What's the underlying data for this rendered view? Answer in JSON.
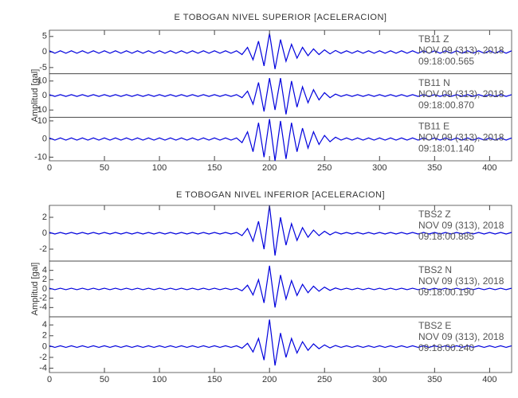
{
  "chart_data": [
    {
      "type": "seismogram",
      "title": "E TOBOGAN NIVEL SUPERIOR [ACELERACION]",
      "ylabel": "Amplitud [gal]",
      "xlim": [
        0,
        420
      ],
      "xticks": [
        0,
        50,
        100,
        150,
        200,
        250,
        300,
        350,
        400
      ],
      "x": [
        0,
        5,
        10,
        15,
        20,
        25,
        30,
        35,
        40,
        45,
        50,
        55,
        60,
        65,
        70,
        75,
        80,
        85,
        90,
        95,
        100,
        105,
        110,
        115,
        120,
        125,
        130,
        135,
        140,
        145,
        150,
        155,
        160,
        165,
        170,
        175,
        180,
        185,
        190,
        195,
        200,
        205,
        210,
        215,
        220,
        225,
        230,
        235,
        240,
        245,
        250,
        255,
        260,
        265,
        270,
        275,
        280,
        285,
        290,
        295,
        300,
        305,
        310,
        315,
        320,
        325,
        330,
        335,
        340,
        345,
        350,
        355,
        360,
        365,
        370,
        375,
        380,
        385,
        390,
        395,
        400,
        405,
        410,
        415,
        420
      ],
      "series": [
        {
          "name": "TB11   Z",
          "date": "NOV 09 (313), 2018",
          "time": "09:18:00.565",
          "color": "#0000dd",
          "ylim": [
            -7,
            7
          ],
          "yticks": [
            -5,
            0,
            5
          ],
          "values": [
            0.4,
            -0.4,
            0.4,
            -0.4,
            0.4,
            -0.4,
            0.4,
            -0.4,
            0.4,
            -0.4,
            0.4,
            -0.4,
            0.4,
            -0.4,
            0.4,
            -0.4,
            0.4,
            -0.4,
            0.4,
            -0.4,
            0.4,
            -0.4,
            0.4,
            -0.4,
            0.4,
            -0.4,
            0.4,
            -0.4,
            0.4,
            -0.4,
            0.4,
            -0.4,
            0.4,
            -0.4,
            0.4,
            -0.8,
            1.5,
            -2.5,
            3.5,
            -4.5,
            6,
            -5.5,
            4,
            -3,
            2.5,
            -2,
            1.5,
            -1.2,
            1,
            -0.8,
            0.7,
            -0.6,
            0.5,
            -0.4,
            0.4,
            -0.4,
            0.4,
            -0.4,
            0.4,
            -0.4,
            0.4,
            -0.4,
            0.4,
            -0.4,
            0.4,
            -0.4,
            0.4,
            -0.4,
            0.4,
            -0.4,
            0.4,
            -0.4,
            0.4,
            -0.4,
            0.4,
            -0.4,
            0.4,
            -0.4,
            0.4,
            -0.4,
            0.4,
            -0.4,
            0.4,
            -0.4,
            0.4
          ]
        },
        {
          "name": "TB11   N",
          "date": "NOV 09 (313), 2018",
          "time": "09:18:00.870",
          "color": "#0000dd",
          "ylim": [
            -15,
            15
          ],
          "yticks": [
            -10,
            0,
            10
          ],
          "values": [
            0.6,
            -0.6,
            0.6,
            -0.6,
            0.6,
            -0.6,
            0.6,
            -0.6,
            0.6,
            -0.6,
            0.6,
            -0.6,
            0.6,
            -0.6,
            0.6,
            -0.6,
            0.6,
            -0.6,
            0.6,
            -0.6,
            0.6,
            -0.6,
            0.6,
            -0.6,
            0.6,
            -0.6,
            0.6,
            -0.6,
            0.6,
            -0.6,
            0.6,
            -0.6,
            0.6,
            -0.6,
            0.6,
            -1.5,
            3,
            -6,
            9,
            -11,
            12,
            -10,
            12,
            -13,
            10,
            -8,
            6,
            -5,
            4,
            -3,
            2,
            -1.5,
            1,
            -0.6,
            0.6,
            -0.6,
            0.6,
            -0.6,
            0.6,
            -0.6,
            0.6,
            -0.6,
            0.6,
            -0.6,
            0.6,
            -0.6,
            0.6,
            -0.6,
            0.6,
            -0.6,
            0.6,
            -0.6,
            0.6,
            -0.6,
            0.6,
            -0.6,
            0.6,
            -0.6,
            0.6,
            -0.6,
            0.6,
            -0.6,
            0.6,
            -0.6,
            0.6
          ]
        },
        {
          "name": "TB11   E",
          "date": "NOV 09 (313), 2018",
          "time": "09:18:01.140",
          "color": "#0000dd",
          "ylim": [
            -12,
            12
          ],
          "yticks": [
            -10,
            0,
            10
          ],
          "values": [
            0.6,
            -0.6,
            0.6,
            -0.6,
            0.6,
            -0.6,
            0.6,
            -0.6,
            0.6,
            -0.6,
            0.6,
            -0.6,
            0.6,
            -0.6,
            0.6,
            -0.6,
            0.6,
            -0.6,
            0.6,
            -0.6,
            0.6,
            -0.6,
            0.6,
            -0.6,
            0.6,
            -0.6,
            0.6,
            -0.6,
            0.6,
            -0.6,
            0.6,
            -0.6,
            0.6,
            -0.6,
            0.6,
            -2,
            4,
            -7,
            9,
            -10,
            11,
            -12,
            10,
            -11,
            9,
            -7,
            6,
            -5,
            4,
            -3,
            2,
            -1.5,
            1,
            -0.6,
            0.6,
            -0.6,
            0.6,
            -0.6,
            0.6,
            -0.6,
            0.6,
            -0.6,
            0.6,
            -0.6,
            0.6,
            -0.6,
            0.6,
            -0.6,
            0.6,
            -0.6,
            0.6,
            -0.6,
            0.6,
            -0.6,
            0.6,
            -0.6,
            0.6,
            -0.6,
            0.6,
            -0.6,
            0.6,
            -0.6,
            0.6,
            -0.6,
            0.6
          ]
        }
      ]
    },
    {
      "type": "seismogram",
      "title": "E TOBOGAN NIVEL INFERIOR [ACELERACION]",
      "ylabel": "Amplitud [gal]",
      "xlim": [
        0,
        420
      ],
      "xticks": [
        0,
        50,
        100,
        150,
        200,
        250,
        300,
        350,
        400
      ],
      "x": [
        0,
        5,
        10,
        15,
        20,
        25,
        30,
        35,
        40,
        45,
        50,
        55,
        60,
        65,
        70,
        75,
        80,
        85,
        90,
        95,
        100,
        105,
        110,
        115,
        120,
        125,
        130,
        135,
        140,
        145,
        150,
        155,
        160,
        165,
        170,
        175,
        180,
        185,
        190,
        195,
        200,
        205,
        210,
        215,
        220,
        225,
        230,
        235,
        240,
        245,
        250,
        255,
        260,
        265,
        270,
        275,
        280,
        285,
        290,
        295,
        300,
        305,
        310,
        315,
        320,
        325,
        330,
        335,
        340,
        345,
        350,
        355,
        360,
        365,
        370,
        375,
        380,
        385,
        390,
        395,
        400,
        405,
        410,
        415,
        420
      ],
      "series": [
        {
          "name": "TBS2   Z",
          "date": "NOV 09 (313), 2018",
          "time": "09:18:00.885",
          "color": "#0000dd",
          "ylim": [
            -3.5,
            3.5
          ],
          "yticks": [
            -2,
            0,
            2
          ],
          "values": [
            0.1,
            -0.1,
            0.1,
            -0.1,
            0.1,
            -0.1,
            0.1,
            -0.1,
            0.1,
            -0.1,
            0.1,
            -0.1,
            0.1,
            -0.1,
            0.1,
            -0.1,
            0.1,
            -0.1,
            0.1,
            -0.1,
            0.1,
            -0.1,
            0.1,
            -0.1,
            0.1,
            -0.1,
            0.1,
            -0.1,
            0.1,
            -0.1,
            0.1,
            -0.1,
            0.1,
            -0.1,
            0.1,
            -0.3,
            0.6,
            -1,
            1.5,
            -2,
            3.5,
            -2.8,
            2,
            -1.5,
            1.2,
            -0.9,
            0.7,
            -0.5,
            0.4,
            -0.3,
            0.25,
            -0.2,
            0.15,
            -0.1,
            0.1,
            -0.1,
            0.1,
            -0.1,
            0.1,
            -0.1,
            0.1,
            -0.1,
            0.1,
            -0.1,
            0.1,
            -0.1,
            0.1,
            -0.1,
            0.1,
            -0.1,
            0.1,
            -0.1,
            0.1,
            -0.1,
            0.1,
            -0.1,
            0.1,
            -0.1,
            0.1,
            -0.1,
            0.1,
            -0.1,
            0.1,
            -0.1,
            0.1
          ]
        },
        {
          "name": "TBS2   N",
          "date": "NOV 09 (313), 2018",
          "time": "09:18:00.190",
          "color": "#0000dd",
          "ylim": [
            -6,
            6
          ],
          "yticks": [
            -4,
            -2,
            0,
            2,
            4
          ],
          "values": [
            0.15,
            -0.15,
            0.15,
            -0.15,
            0.15,
            -0.15,
            0.15,
            -0.15,
            0.15,
            -0.15,
            0.15,
            -0.15,
            0.15,
            -0.15,
            0.15,
            -0.15,
            0.15,
            -0.15,
            0.15,
            -0.15,
            0.15,
            -0.15,
            0.15,
            -0.15,
            0.15,
            -0.15,
            0.15,
            -0.15,
            0.15,
            -0.15,
            0.15,
            -0.15,
            0.15,
            -0.15,
            0.15,
            -0.4,
            0.8,
            -1.3,
            2,
            -3,
            5,
            -4,
            3,
            -2.2,
            1.8,
            -1.4,
            1,
            -0.8,
            0.6,
            -0.5,
            0.4,
            -0.3,
            0.2,
            -0.15,
            0.15,
            -0.15,
            0.15,
            -0.15,
            0.15,
            -0.15,
            0.15,
            -0.15,
            0.15,
            -0.15,
            0.15,
            -0.15,
            0.15,
            -0.15,
            0.15,
            -0.15,
            0.15,
            -0.15,
            0.15,
            -0.15,
            0.15,
            -0.15,
            0.15,
            -0.15,
            0.15,
            -0.15,
            0.15,
            -0.15,
            0.15,
            -0.15,
            0.15
          ]
        },
        {
          "name": "TBS2   E",
          "date": "NOV 09 (313), 2018",
          "time": "09:18:00.240",
          "color": "#0000dd",
          "ylim": [
            -4.8,
            5.5
          ],
          "yticks": [
            -4,
            -2,
            0,
            2,
            4
          ],
          "values": [
            0.15,
            -0.15,
            0.15,
            -0.15,
            0.15,
            -0.15,
            0.15,
            -0.15,
            0.15,
            -0.15,
            0.15,
            -0.15,
            0.15,
            -0.15,
            0.15,
            -0.15,
            0.15,
            -0.15,
            0.15,
            -0.15,
            0.15,
            -0.15,
            0.15,
            -0.15,
            0.15,
            -0.15,
            0.15,
            -0.15,
            0.15,
            -0.15,
            0.15,
            -0.15,
            0.15,
            -0.15,
            0.15,
            -0.3,
            0.6,
            -1,
            1.5,
            -2.5,
            5,
            -3.5,
            2.5,
            -2,
            1.5,
            -1.2,
            0.9,
            -0.7,
            0.5,
            -0.4,
            0.3,
            -0.25,
            0.2,
            -0.15,
            0.15,
            -0.15,
            0.15,
            -0.15,
            0.15,
            -0.15,
            0.15,
            -0.15,
            0.15,
            -0.15,
            0.15,
            -0.15,
            0.15,
            -0.15,
            0.15,
            -0.15,
            0.15,
            -0.15,
            0.15,
            -0.15,
            0.15,
            -0.15,
            0.15,
            -0.15,
            0.15,
            -0.15,
            0.15,
            -0.15,
            0.15,
            -0.15,
            0.15
          ]
        }
      ]
    }
  ]
}
